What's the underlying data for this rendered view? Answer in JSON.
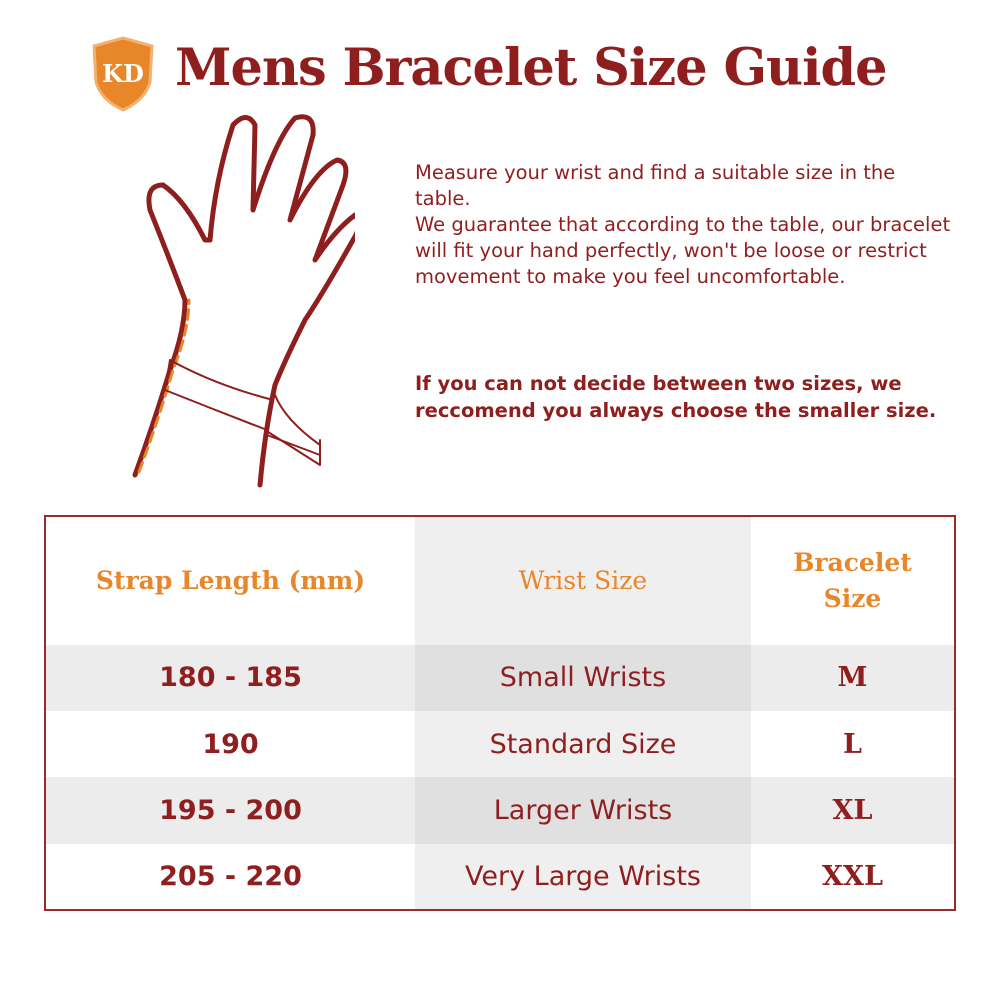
{
  "logo": {
    "text": "KD",
    "color": "#e8862a"
  },
  "title": "Mens Bracelet Size Guide",
  "description": [
    "Measure your wrist and find a suitable size in the table.",
    "We guarantee that according to the table, our bracelet will fit your hand perfectly, won't be loose or restrict movement to make you feel uncomfortable."
  ],
  "note": "If you can not decide between two sizes, we reccomend you always choose the smaller size.",
  "colors": {
    "primary": "#8f1f1f",
    "accent": "#e8862a"
  },
  "table": {
    "headers": [
      "Strap Length (mm)",
      "Wrist Size",
      "Bracelet Size"
    ],
    "rows": [
      [
        "180 - 185",
        "Small Wrists",
        "M"
      ],
      [
        "190",
        "Standard Size",
        "L"
      ],
      [
        "195 - 200",
        "Larger Wrists",
        "XL"
      ],
      [
        "205 - 220",
        "Very Large Wrists",
        "XXL"
      ]
    ]
  }
}
